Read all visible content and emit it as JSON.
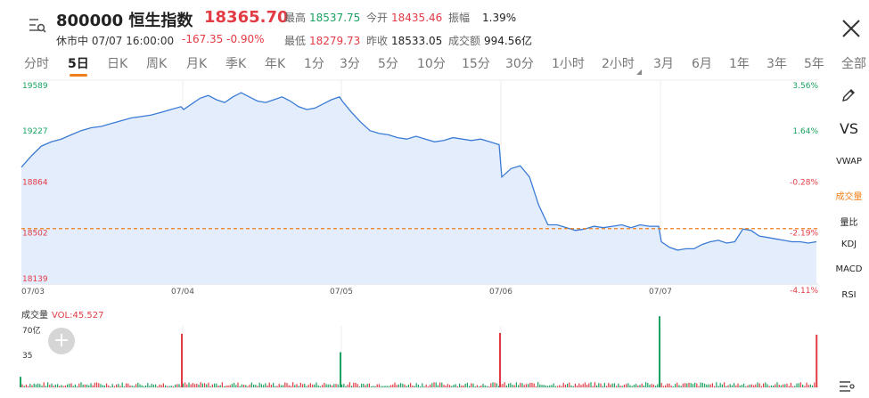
{
  "header": {
    "code_name": "800000 恒生指数",
    "price": "18365.70",
    "status": "休市中 07/07 16:00:00",
    "change": "-167.35 -0.90%",
    "stats": [
      {
        "label": "最高",
        "value": "18537.75",
        "color": "#1aa260"
      },
      {
        "label": "今开",
        "value": "18435.46",
        "color": "#e33b45"
      },
      {
        "label": "振幅",
        "value": "1.39%",
        "color": "#222222"
      },
      {
        "label": "最低",
        "value": "18279.73",
        "color": "#e33b45"
      },
      {
        "label": "昨收",
        "value": "18533.05",
        "color": "#222222"
      },
      {
        "label": "成交额",
        "value": "994.56亿",
        "color": "#222222"
      }
    ]
  },
  "tabs": [
    "分时",
    "5日",
    "日K",
    "周K",
    "月K",
    "季K",
    "年K",
    "1分",
    "3分",
    "5分",
    "10分",
    "15分",
    "30分",
    "1小时",
    "2小时",
    "3月",
    "6月",
    "1年",
    "3年",
    "5年",
    "全部"
  ],
  "active_tab": "5日",
  "side_menu": [
    "VS",
    "VWAP",
    "成交量",
    "量比",
    "KDJ",
    "MACD",
    "RSI"
  ],
  "volume_panel": {
    "title": "成交量",
    "value": "VOL:45.527",
    "y_labels": [
      "70亿",
      "35"
    ]
  },
  "colors": {
    "accent": "#f07f1a",
    "up": "#e33b45",
    "down": "#1aa260",
    "line": "#3a7bd5",
    "area": "#e4edfc"
  },
  "chart_data": {
    "type": "line",
    "x_labels": [
      "07/03",
      "07/04",
      "07/05",
      "07/06",
      "07/07"
    ],
    "y_labels_left": [
      "19589",
      "19227",
      "18864",
      "18502",
      "18139"
    ],
    "y_labels_right": [
      "3.56%",
      "1.64%",
      "-0.28%",
      "-2.19%",
      "-4.11%"
    ],
    "ylim": [
      18139,
      19589
    ],
    "prev_close": 18533.05,
    "days": [
      [
        18970,
        19050,
        19120,
        19150,
        19170,
        19200,
        19230,
        19250,
        19260,
        19280,
        19300,
        19320,
        19330,
        19340,
        19360,
        19380,
        19400
      ],
      [
        19380,
        19420,
        19460,
        19480,
        19450,
        19430,
        19470,
        19500,
        19470,
        19440,
        19430,
        19450,
        19470,
        19440,
        19400,
        19380,
        19390,
        19420,
        19450,
        19470
      ],
      [
        19440,
        19360,
        19290,
        19230,
        19210,
        19200,
        19180,
        19170,
        19190,
        19170,
        19150,
        19160,
        19180,
        19170,
        19160,
        19170,
        19150,
        19130
      ],
      [
        18900,
        18960,
        18980,
        18900,
        18700,
        18560,
        18560,
        18540,
        18520,
        18530,
        18550,
        18540,
        18550,
        18560,
        18540,
        18560,
        18550,
        18550
      ],
      [
        18440,
        18400,
        18380,
        18390,
        18390,
        18420,
        18440,
        18450,
        18430,
        18440,
        18530,
        18520,
        18480,
        18470,
        18460,
        18450,
        18440,
        18440,
        18430,
        18440
      ]
    ],
    "volume_spikes": [
      {
        "day": 0,
        "value": 12
      },
      {
        "day": 1,
        "value": 61
      },
      {
        "day": 2,
        "value": 40
      },
      {
        "day": 3,
        "value": 62
      },
      {
        "day": 4,
        "value": 81
      },
      {
        "day": 4.99,
        "value": 60
      }
    ]
  }
}
